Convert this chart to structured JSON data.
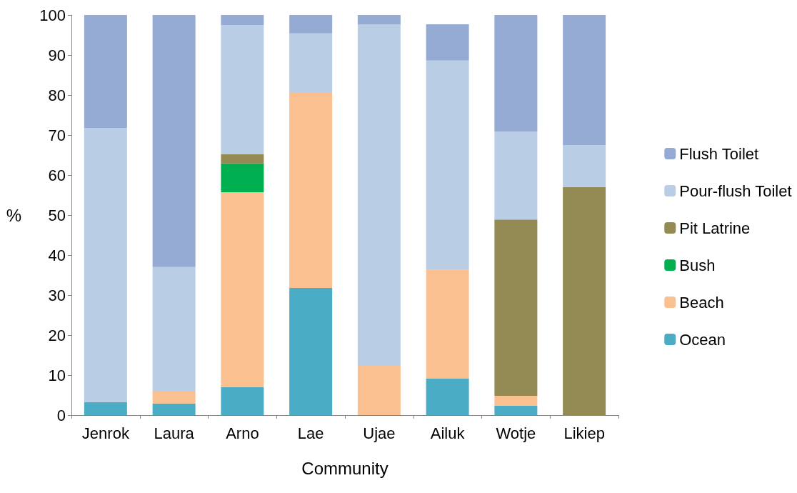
{
  "chart_data": {
    "type": "bar",
    "stacked": true,
    "xlabel": "Community",
    "ylabel": "%",
    "categories": [
      "Jenrok",
      "Laura",
      "Arno",
      "Lae",
      "Ujae",
      "Ailuk",
      "Wotje",
      "Likiep"
    ],
    "series": [
      {
        "name": "Ocean",
        "color": "#4bacc6",
        "values": [
          3.2,
          2.9,
          7,
          31.8,
          0,
          9.1,
          2.3,
          0
        ]
      },
      {
        "name": "Beach",
        "color": "#fac090",
        "values": [
          0,
          3,
          48.7,
          48.9,
          12.3,
          27.3,
          2.5,
          0
        ]
      },
      {
        "name": "Bush",
        "color": "#00b050",
        "values": [
          0,
          0,
          7.2,
          0,
          0,
          0,
          0,
          0
        ]
      },
      {
        "name": "Pit Latrine",
        "color": "#948a54",
        "values": [
          0,
          0,
          2.3,
          0,
          0,
          0,
          44.1,
          57
        ]
      },
      {
        "name": "Pour-flush Toilet",
        "color": "#b9cde5",
        "values": [
          68.6,
          31.1,
          32.3,
          14.7,
          85.4,
          52.2,
          22,
          10.5
        ]
      },
      {
        "name": "Flush Toilet",
        "color": "#95abd3",
        "values": [
          28.2,
          63,
          2.5,
          4.6,
          2.3,
          9.1,
          29.1,
          32.5
        ]
      }
    ],
    "ylim": [
      0,
      100
    ],
    "yticks": [
      0,
      10,
      20,
      30,
      40,
      50,
      60,
      70,
      80,
      90,
      100
    ],
    "grid": false,
    "legend": "right"
  }
}
